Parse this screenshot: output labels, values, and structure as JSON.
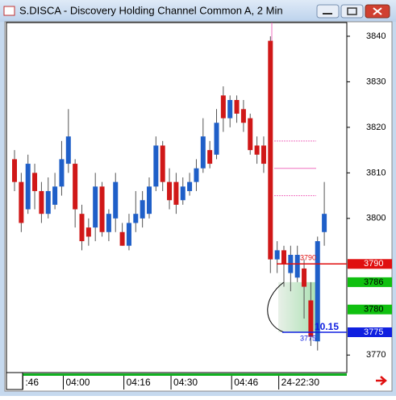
{
  "window_title": "S.DISCA - Discovery Holding Channel Common A, 2 Min",
  "chart_data": {
    "type": "candlestick",
    "categories": [
      null,
      ":46",
      null,
      null,
      null,
      null,
      null,
      "04:00",
      null,
      null,
      null,
      null,
      null,
      null,
      null,
      null,
      "04:16",
      null,
      null,
      null,
      null,
      null,
      null,
      "04:30",
      null,
      null,
      null,
      null,
      null,
      null,
      null,
      null,
      "04:46",
      null,
      null,
      null,
      null,
      null,
      null,
      "24-22:30",
      null,
      null,
      null,
      null,
      null,
      null,
      null
    ],
    "open": [
      3813,
      3808,
      3802,
      3810,
      3806,
      3801,
      3803,
      3807,
      3812,
      3812,
      3801,
      3798,
      3798,
      3807,
      3797,
      3800,
      3797,
      3794,
      3799,
      3800,
      3801,
      3807,
      3816,
      3808,
      3808,
      3804,
      3806,
      3808,
      3811,
      3815,
      3814,
      3827,
      3822,
      3826,
      3824,
      3822,
      3816,
      3816,
      3839,
      3791,
      3793,
      3788,
      3787,
      3789,
      3782,
      3773,
      3797
    ],
    "high": [
      3815,
      3810,
      3814,
      3812,
      3808,
      3809,
      3810,
      3817,
      3824,
      3813,
      3803,
      3800,
      3810,
      3808,
      3802,
      3810,
      3799,
      3801,
      3806,
      3806,
      3809,
      3818,
      3817,
      3811,
      3810,
      3809,
      3810,
      3813,
      3822,
      3817,
      3824,
      3829,
      3827,
      3827,
      3826,
      3823,
      3818,
      3818,
      3840,
      3795,
      3794,
      3794,
      3794,
      3791,
      3786,
      3796,
      3808
    ],
    "low": [
      3806,
      3797,
      3801,
      3802,
      3799,
      3800,
      3802,
      3805,
      3810,
      3798,
      3793,
      3794,
      3795,
      3796,
      3795,
      3797,
      3794,
      3793,
      3797,
      3798,
      3800,
      3806,
      3806,
      3802,
      3801,
      3803,
      3805,
      3806,
      3810,
      3811,
      3813,
      3819,
      3820,
      3821,
      3819,
      3814,
      3812,
      3810,
      3788,
      3788,
      3785,
      3784,
      3786,
      3778,
      3772,
      3771,
      3794
    ],
    "close": [
      3808,
      3799,
      3812,
      3806,
      3801,
      3806,
      3807,
      3813,
      3818,
      3802,
      3795,
      3796,
      3807,
      3797,
      3801,
      3808,
      3794,
      3799,
      3801,
      3804,
      3807,
      3816,
      3808,
      3804,
      3803,
      3807,
      3808,
      3811,
      3818,
      3812,
      3821,
      3822,
      3826,
      3823,
      3821,
      3815,
      3814,
      3812,
      3791,
      3793,
      3790,
      3792,
      3792,
      3785,
      3774,
      3795,
      3801
    ],
    "up_color": "#1f5fc8",
    "down_color": "#d01818",
    "ylim": [
      3766.5,
      3843
    ],
    "yticks": [
      3770,
      3800,
      3810,
      3820,
      3830,
      3840
    ],
    "price_tags": [
      {
        "value": 3790,
        "color": "#e01010"
      },
      {
        "value": 3786,
        "color": "#10c010"
      },
      {
        "value": 3780,
        "color": "#10c010"
      },
      {
        "value": 3775,
        "color": "#1020e0"
      }
    ],
    "reference_lines": [
      3817,
      3811,
      3805
    ],
    "reference_color": "#f070c0",
    "annotation": "10.15"
  }
}
